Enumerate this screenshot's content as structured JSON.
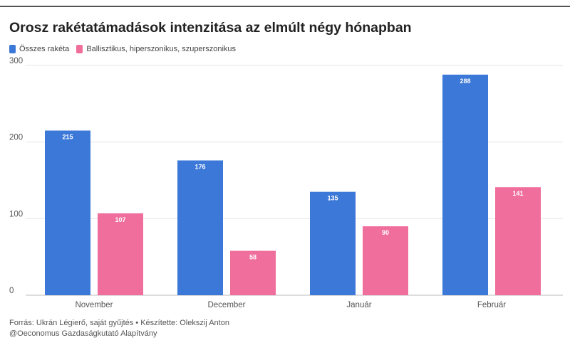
{
  "colors": {
    "total": "#3c78d8",
    "ballistic": "#f06e9c",
    "grid": "#e6e6e6",
    "axis": "#bbbbbb"
  },
  "chart_data": {
    "type": "bar",
    "title": "Orosz rakétatámadások intenzitása az elmúlt négy hónapban",
    "categories": [
      "November",
      "December",
      "Január",
      "Február"
    ],
    "series": [
      {
        "name": "Összes rakéta",
        "values": [
          215,
          176,
          135,
          288
        ]
      },
      {
        "name": "Ballisztikus, hiperszonikus, szuperszonikus",
        "values": [
          107,
          58,
          90,
          141
        ]
      }
    ],
    "yticks": [
      0,
      100,
      200,
      300
    ],
    "ylim": [
      0,
      300
    ],
    "grid": true,
    "legend": "top-left",
    "xlabel": "",
    "ylabel": ""
  },
  "footer": {
    "line1": "Forrás: Ukrán Légierő, saját gyűjtés • Készítette: Olekszij Anton",
    "line2": "@Oeconomus Gazdaságkutató Alapítvány"
  }
}
